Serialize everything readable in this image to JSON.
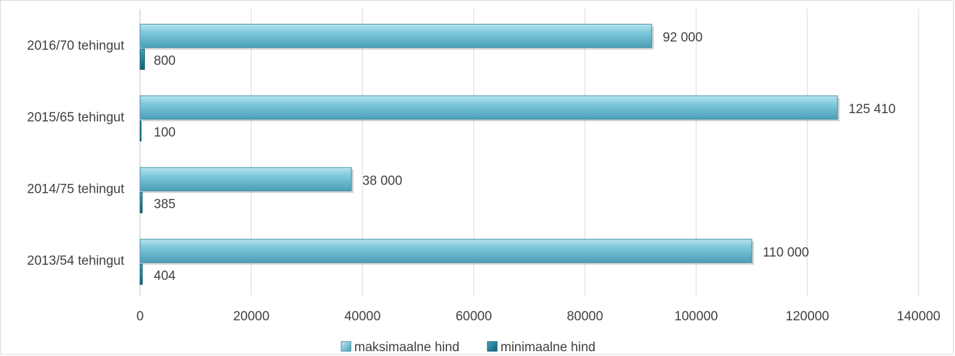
{
  "chart_data": {
    "type": "bar",
    "orientation": "horizontal",
    "categories": [
      "2013/54 tehingut",
      "2014/75 tehingut",
      "2015/65 tehingut",
      "2016/70 tehingut"
    ],
    "series": [
      {
        "name": "maksimaalne hind",
        "values": [
          110000,
          38000,
          125410,
          92000
        ],
        "labels": [
          "110 000",
          "38 000",
          "125 410",
          "92 000"
        ],
        "color": "#5fb3c9"
      },
      {
        "name": "minimaalne hind",
        "values": [
          404,
          385,
          100,
          800
        ],
        "labels": [
          "404",
          "385",
          "100",
          "800"
        ],
        "color": "#1f7f96"
      }
    ],
    "x_ticks": [
      "0",
      "20000",
      "40000",
      "60000",
      "80000",
      "100000",
      "120000",
      "140000"
    ],
    "xlim": [
      0,
      140000
    ],
    "grid": true,
    "legend_position": "bottom"
  }
}
